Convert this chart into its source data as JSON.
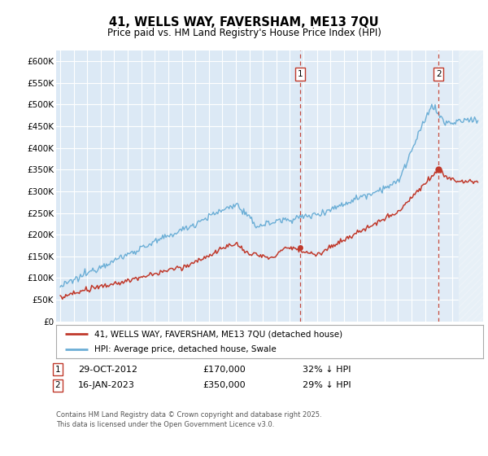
{
  "title": "41, WELLS WAY, FAVERSHAM, ME13 7QU",
  "subtitle": "Price paid vs. HM Land Registry's House Price Index (HPI)",
  "ylim": [
    0,
    625000
  ],
  "yticks": [
    0,
    50000,
    100000,
    150000,
    200000,
    250000,
    300000,
    350000,
    400000,
    450000,
    500000,
    550000,
    600000
  ],
  "ytick_labels": [
    "£0",
    "£50K",
    "£100K",
    "£150K",
    "£200K",
    "£250K",
    "£300K",
    "£350K",
    "£400K",
    "£450K",
    "£500K",
    "£550K",
    "£600K"
  ],
  "hpi_color": "#6baed6",
  "price_color": "#c0392b",
  "plot_bg": "#dce9f5",
  "marker1_year_idx": 213,
  "marker1_price": 170000,
  "marker1_label": "1",
  "marker2_year_idx": 336,
  "marker2_price": 350000,
  "marker2_label": "2",
  "legend_line1": "41, WELLS WAY, FAVERSHAM, ME13 7QU (detached house)",
  "legend_line2": "HPI: Average price, detached house, Swale",
  "note1_label": "1",
  "note1_date": "29-OCT-2012",
  "note1_price": "£170,000",
  "note1_pct": "32% ↓ HPI",
  "note2_label": "2",
  "note2_date": "16-JAN-2023",
  "note2_price": "£350,000",
  "note2_pct": "29% ↓ HPI",
  "footer": "Contains HM Land Registry data © Crown copyright and database right 2025.\nThis data is licensed under the Open Government Licence v3.0."
}
